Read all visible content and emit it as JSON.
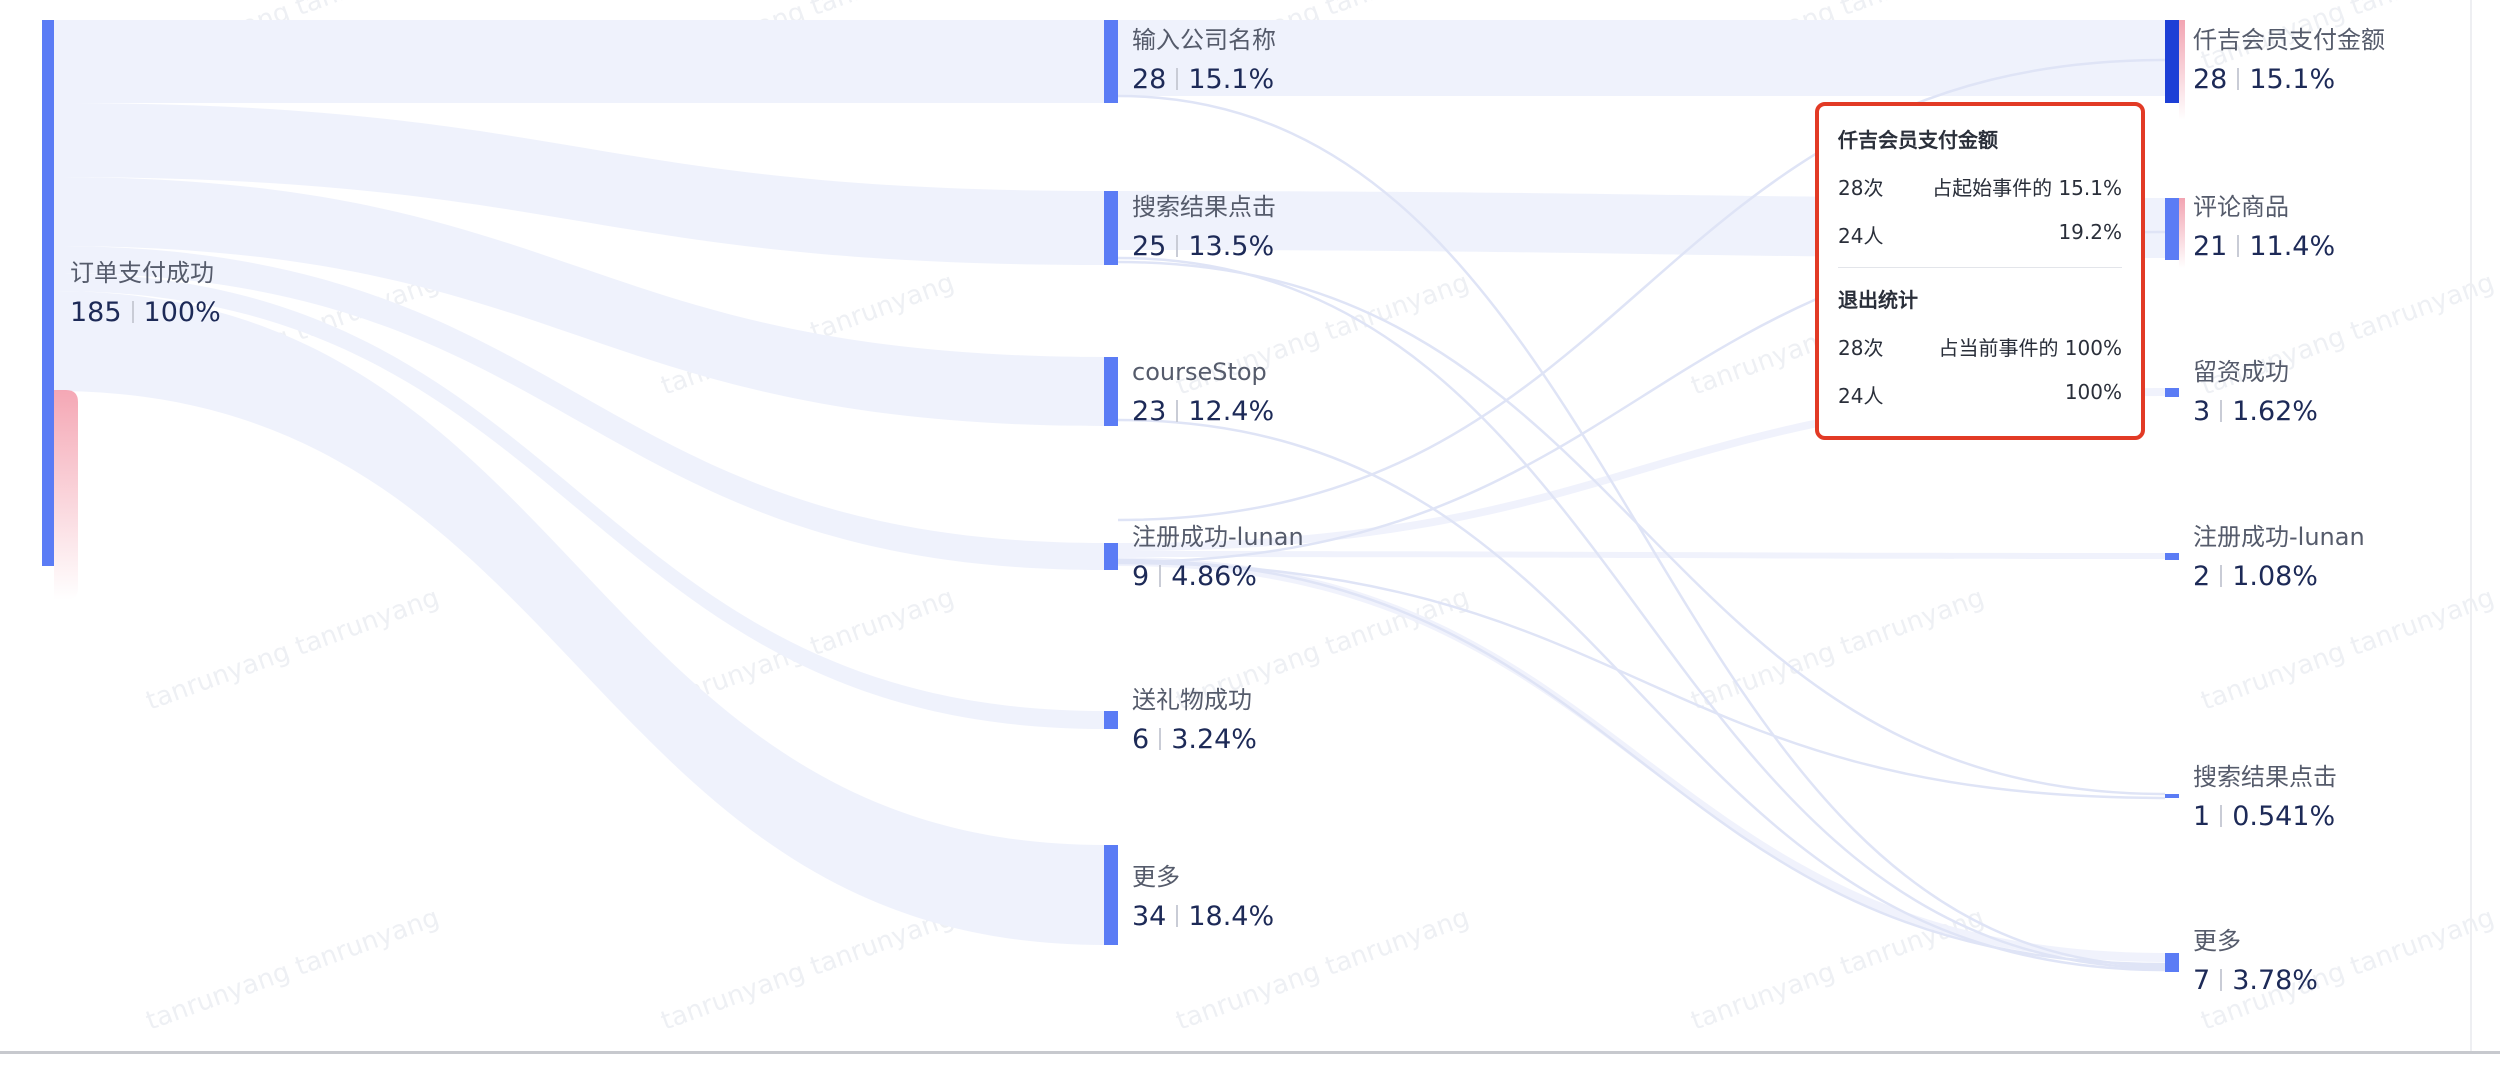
{
  "nodes": [
    {
      "name": "订单支付成功",
      "count": "185",
      "pct": "100%"
    },
    {
      "name": "输入公司名称",
      "count": "28",
      "pct": "15.1%"
    },
    {
      "name": "搜索结果点击",
      "count": "25",
      "pct": "13.5%"
    },
    {
      "name": "courseStop",
      "count": "23",
      "pct": "12.4%"
    },
    {
      "name": "注册成功-lunan",
      "count": "9",
      "pct": "4.86%"
    },
    {
      "name": "送礼物成功",
      "count": "6",
      "pct": "3.24%"
    },
    {
      "name": "更多",
      "count": "34",
      "pct": "18.4%"
    },
    {
      "name": "仟吉会员支付金额",
      "count": "28",
      "pct": "15.1%"
    },
    {
      "name": "评论商品",
      "count": "21",
      "pct": "11.4%"
    },
    {
      "name": "留资成功",
      "count": "3",
      "pct": "1.62%"
    },
    {
      "name": "注册成功-lunan",
      "count": "2",
      "pct": "1.08%"
    },
    {
      "name": "搜索结果点击",
      "count": "1",
      "pct": "0.541%"
    },
    {
      "name": "更多",
      "count": "7",
      "pct": "3.78%"
    }
  ],
  "tooltip": {
    "title": "仟吉会员支付金额",
    "rows": [
      {
        "left": "28次",
        "right": "占起始事件的 15.1%"
      },
      {
        "left": "24人",
        "right": "19.2%"
      }
    ],
    "section2_title": "退出统计",
    "rows2": [
      {
        "left": "28次",
        "right": "占当前事件的 100%"
      },
      {
        "left": "24人",
        "right": "100%"
      }
    ]
  },
  "watermark": "tanrunyang",
  "colors": {
    "node_bar": "#5b7cf5",
    "node_bar_highlight": "#1d3fd6",
    "link_fill": "#eef1fc",
    "dropoff": "#f2a8b4",
    "tooltip_border": "#e23a25",
    "stat_text": "#1d2a57",
    "name_text": "#555b6b"
  }
}
